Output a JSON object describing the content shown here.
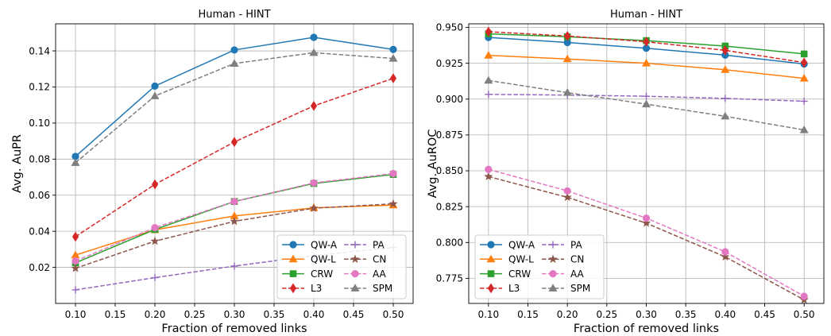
{
  "chart_data": [
    {
      "type": "line",
      "title": "Human - HINT",
      "xlabel": "Fraction of removed links",
      "ylabel": "Avg. AuPR",
      "x": [
        0.1,
        0.2,
        0.3,
        0.4,
        0.5
      ],
      "xlim": [
        0.075,
        0.525
      ],
      "ylim": [
        0.0,
        0.155
      ],
      "xticks": [
        "0.10",
        "0.15",
        "0.20",
        "0.25",
        "0.30",
        "0.35",
        "0.40",
        "0.45",
        "0.50"
      ],
      "yticks": [
        "0.02",
        "0.04",
        "0.06",
        "0.08",
        "0.10",
        "0.12",
        "0.14"
      ],
      "grid": true,
      "legend_position": "lower-right",
      "series": [
        {
          "name": "QW-A",
          "values": [
            0.0815,
            0.1205,
            0.1405,
            0.1475,
            0.1408
          ],
          "color": "#1f77b4",
          "marker": "circle",
          "dash": "solid"
        },
        {
          "name": "QW-L",
          "values": [
            0.0268,
            0.0408,
            0.0485,
            0.053,
            0.0545
          ],
          "color": "#ff7f0e",
          "marker": "triangle",
          "dash": "solid"
        },
        {
          "name": "CRW",
          "values": [
            0.0225,
            0.041,
            0.0565,
            0.0665,
            0.0715
          ],
          "color": "#2ca02c",
          "marker": "square",
          "dash": "solid"
        },
        {
          "name": "L3",
          "values": [
            0.037,
            0.066,
            0.0895,
            0.1095,
            0.1248
          ],
          "color": "#d62728",
          "marker": "diamond",
          "dash": "dashed"
        },
        {
          "name": "PA",
          "values": [
            0.0075,
            0.0143,
            0.0207,
            0.0265,
            0.031
          ],
          "color": "#9467bd",
          "marker": "plus",
          "dash": "dashed"
        },
        {
          "name": "CN",
          "values": [
            0.0195,
            0.0345,
            0.0455,
            0.0528,
            0.0552
          ],
          "color": "#8c564b",
          "marker": "star",
          "dash": "dashed"
        },
        {
          "name": "AA",
          "values": [
            0.0235,
            0.042,
            0.0565,
            0.0668,
            0.072
          ],
          "color": "#e377c2",
          "marker": "circle",
          "dash": "dashed"
        },
        {
          "name": "SPM",
          "values": [
            0.078,
            0.115,
            0.133,
            0.139,
            0.1358
          ],
          "color": "#7f7f7f",
          "marker": "triangle",
          "dash": "dashed"
        }
      ]
    },
    {
      "type": "line",
      "title": "Human - HINT",
      "xlabel": "Fraction of removed links",
      "ylabel": "Avg. AuROC",
      "x": [
        0.1,
        0.2,
        0.3,
        0.4,
        0.5
      ],
      "xlim": [
        0.075,
        0.525
      ],
      "ylim": [
        0.7575,
        0.9525
      ],
      "xticks": [
        "0.10",
        "0.15",
        "0.20",
        "0.25",
        "0.30",
        "0.35",
        "0.40",
        "0.45",
        "0.50"
      ],
      "yticks": [
        "0.775",
        "0.800",
        "0.825",
        "0.850",
        "0.875",
        "0.900",
        "0.925",
        "0.950"
      ],
      "grid": true,
      "legend_position": "lower-left",
      "series": [
        {
          "name": "QW-A",
          "values": [
            0.943,
            0.9395,
            0.9355,
            0.9307,
            0.9245
          ],
          "color": "#1f77b4",
          "marker": "circle",
          "dash": "solid"
        },
        {
          "name": "QW-L",
          "values": [
            0.9305,
            0.928,
            0.925,
            0.9205,
            0.9145
          ],
          "color": "#ff7f0e",
          "marker": "triangle",
          "dash": "solid"
        },
        {
          "name": "CRW",
          "values": [
            0.9455,
            0.9435,
            0.9408,
            0.937,
            0.9315
          ],
          "color": "#2ca02c",
          "marker": "square",
          "dash": "solid"
        },
        {
          "name": "L3",
          "values": [
            0.947,
            0.944,
            0.94,
            0.934,
            0.9255
          ],
          "color": "#d62728",
          "marker": "diamond",
          "dash": "dashed"
        },
        {
          "name": "PA",
          "values": [
            0.9033,
            0.9028,
            0.902,
            0.9005,
            0.8985
          ],
          "color": "#9467bd",
          "marker": "plus",
          "dash": "dashed"
        },
        {
          "name": "CN",
          "values": [
            0.846,
            0.8315,
            0.8135,
            0.79,
            0.76
          ],
          "color": "#8c564b",
          "marker": "star",
          "dash": "dashed"
        },
        {
          "name": "AA",
          "values": [
            0.851,
            0.836,
            0.817,
            0.7935,
            0.7625
          ],
          "color": "#e377c2",
          "marker": "circle",
          "dash": "dashed"
        },
        {
          "name": "SPM",
          "values": [
            0.913,
            0.9045,
            0.8965,
            0.888,
            0.8785
          ],
          "color": "#7f7f7f",
          "marker": "triangle",
          "dash": "dashed"
        }
      ]
    }
  ]
}
